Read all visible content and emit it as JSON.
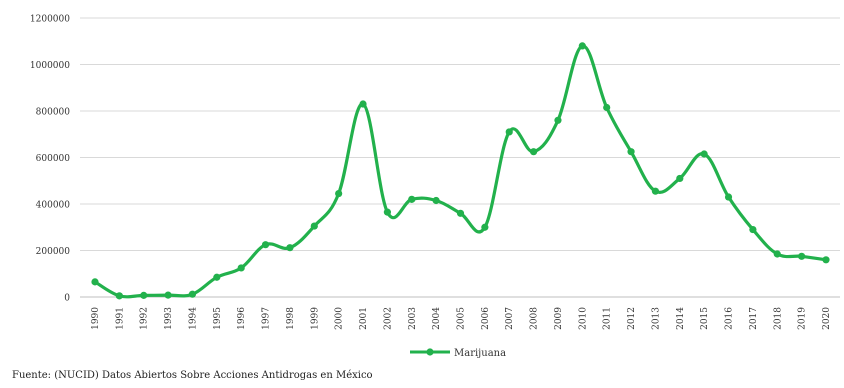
{
  "chart_data": {
    "type": "line",
    "title": "",
    "xlabel": "",
    "ylabel": "",
    "ylim": [
      0,
      1200000
    ],
    "yticks": [
      0,
      200000,
      400000,
      600000,
      800000,
      1000000,
      1200000
    ],
    "ytick_labels": [
      "0",
      "200000",
      "400000",
      "600000",
      "800000",
      "1000000",
      "1200000"
    ],
    "grid": "horizontal",
    "legend_position": "bottom-center",
    "categories": [
      "1990",
      "1991",
      "1992",
      "1993",
      "1994",
      "1995",
      "1996",
      "1997",
      "1998",
      "1999",
      "2000",
      "2001",
      "2002",
      "2003",
      "2004",
      "2005",
      "2006",
      "2007",
      "2008",
      "2009",
      "2010",
      "2011",
      "2012",
      "2013",
      "2014",
      "2015",
      "2016",
      "2017",
      "2018",
      "2019",
      "2020"
    ],
    "series": [
      {
        "name": "Marijuana",
        "color": "#22b14c",
        "values": [
          65000,
          5000,
          7000,
          8000,
          12000,
          85000,
          125000,
          225000,
          212000,
          305000,
          445000,
          830000,
          365000,
          420000,
          415000,
          360000,
          300000,
          710000,
          625000,
          760000,
          1080000,
          815000,
          625000,
          455000,
          510000,
          615000,
          430000,
          290000,
          185000,
          175000,
          160000
        ]
      }
    ]
  },
  "legend": {
    "label": "Marijuana"
  },
  "source": {
    "text": "Fuente: (NUCID) Datos Abiertos Sobre Acciones Antidrogas en México"
  }
}
